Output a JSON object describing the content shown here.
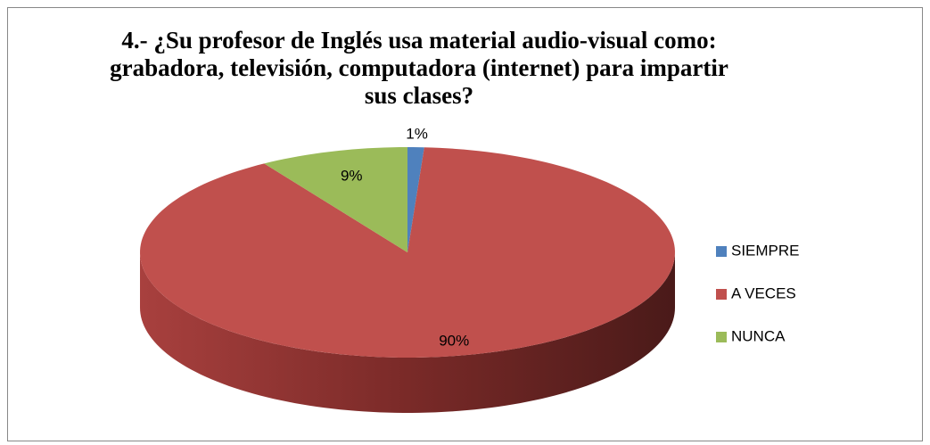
{
  "chart_data": {
    "type": "pie",
    "title": "4.- ¿Su profesor de Inglés usa material audio-visual como: grabadora, televisión, computadora (internet) para impartir sus clases?",
    "categories": [
      "SIEMPRE",
      "A VECES",
      "NUNCA"
    ],
    "values": [
      1,
      90,
      9
    ],
    "value_labels": [
      "1%",
      "90%",
      "9%"
    ],
    "colors": [
      "#4f81bd",
      "#c0504d",
      "#9bbb59"
    ],
    "legend": "right"
  }
}
